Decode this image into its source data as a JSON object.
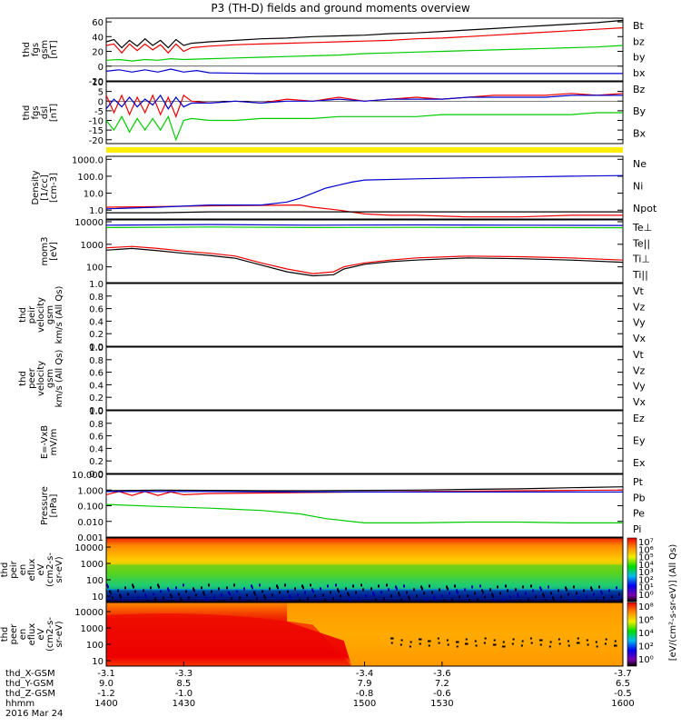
{
  "title": "P3 (TH-D) fields and ground moments overview",
  "colors": {
    "black": "#000000",
    "red": "#ee0000",
    "green": "#00cc00",
    "blue": "#0000cc"
  },
  "chart_data": [
    {
      "type": "line",
      "panel": "fgs-gsm",
      "ylabel_lines": [
        "thd",
        "fgs",
        "gsm",
        "[nT]"
      ],
      "ylim": [
        -20,
        65
      ],
      "ytick_labels": [
        "60",
        "40",
        "20",
        "0",
        "-20"
      ],
      "ytick_values": [
        60,
        40,
        20,
        0,
        -20
      ],
      "legend": [
        "Bt",
        "bz",
        "by",
        "bx"
      ],
      "series": [
        {
          "name": "Bt",
          "color": "black",
          "x": [
            1400,
            1403,
            1406,
            1409,
            1412,
            1415,
            1418,
            1421,
            1424,
            1427,
            1430,
            1433,
            1440,
            1450,
            1460,
            1470,
            1480,
            1490,
            1500,
            1510,
            1520,
            1530,
            1540,
            1550,
            1560,
            1570,
            1580,
            1590,
            1600
          ],
          "y": [
            33,
            36,
            25,
            35,
            27,
            37,
            28,
            35,
            25,
            36,
            28,
            31,
            33,
            35,
            37,
            38,
            40,
            41,
            42,
            44,
            45,
            47,
            49,
            51,
            53,
            55,
            57,
            59,
            62
          ]
        },
        {
          "name": "bz",
          "color": "red",
          "x": [
            1400,
            1403,
            1406,
            1409,
            1412,
            1415,
            1418,
            1421,
            1424,
            1427,
            1430,
            1433,
            1440,
            1450,
            1460,
            1470,
            1480,
            1490,
            1500,
            1510,
            1520,
            1530,
            1540,
            1550,
            1560,
            1570,
            1580,
            1590,
            1600
          ],
          "y": [
            28,
            30,
            18,
            30,
            21,
            30,
            22,
            29,
            18,
            30,
            20,
            25,
            27,
            29,
            30,
            31,
            32,
            33,
            34,
            35,
            37,
            38,
            40,
            42,
            44,
            46,
            48,
            50,
            52
          ]
        },
        {
          "name": "by",
          "color": "green",
          "x": [
            1400,
            1405,
            1410,
            1415,
            1420,
            1425,
            1430,
            1440,
            1450,
            1460,
            1470,
            1480,
            1490,
            1500,
            1510,
            1520,
            1530,
            1540,
            1550,
            1560,
            1570,
            1580,
            1590,
            1600
          ],
          "y": [
            8,
            9,
            7,
            9,
            8,
            10,
            9,
            10,
            11,
            12,
            13,
            14,
            15,
            17,
            18,
            19,
            20,
            21,
            22,
            23,
            24,
            25,
            26,
            28
          ]
        },
        {
          "name": "bx",
          "color": "blue",
          "x": [
            1400,
            1405,
            1410,
            1415,
            1420,
            1425,
            1430,
            1435,
            1440,
            1460,
            1480,
            1500,
            1520,
            1540,
            1560,
            1580,
            1600
          ],
          "y": [
            -7,
            -5,
            -8,
            -5,
            -8,
            -4,
            -8,
            -6,
            -9,
            -10,
            -10,
            -10,
            -10,
            -10,
            -10,
            -10,
            -10
          ]
        }
      ]
    },
    {
      "type": "line",
      "panel": "fgs-dsl",
      "ylabel_lines": [
        "thd",
        "fgs",
        "dsl",
        "[nT]"
      ],
      "ylim": [
        -22,
        10
      ],
      "ytick_labels": [
        "10",
        "5",
        "0",
        "-5",
        "-10",
        "-15",
        "-20"
      ],
      "ytick_values": [
        10,
        5,
        0,
        -5,
        -10,
        -15,
        -20
      ],
      "legend": [
        "Bz",
        "By",
        "Bx"
      ],
      "series": [
        {
          "name": "Bz",
          "color": "red",
          "x": [
            1400,
            1403,
            1406,
            1409,
            1412,
            1415,
            1418,
            1421,
            1424,
            1427,
            1430,
            1433,
            1440,
            1450,
            1460,
            1470,
            1480,
            1490,
            1500,
            1510,
            1520,
            1530,
            1540,
            1550,
            1560,
            1570,
            1580,
            1590,
            1600
          ],
          "y": [
            3,
            -6,
            3,
            -7,
            2,
            -6,
            3,
            -7,
            2,
            -8,
            3,
            0,
            -1,
            0,
            -1,
            1,
            0,
            2,
            0,
            1,
            2,
            1,
            2,
            3,
            3,
            3,
            4,
            3,
            4
          ]
        },
        {
          "name": "By",
          "color": "blue",
          "x": [
            1400,
            1403,
            1406,
            1409,
            1412,
            1415,
            1418,
            1421,
            1424,
            1427,
            1430,
            1433,
            1440,
            1450,
            1460,
            1470,
            1480,
            1490,
            1500,
            1510,
            1520,
            1530,
            1540,
            1550,
            1560,
            1570,
            1580,
            1590,
            1600
          ],
          "y": [
            -4,
            1,
            -3,
            2,
            -3,
            1,
            -2,
            3,
            -4,
            2,
            -3,
            -1,
            -1,
            0,
            -1,
            0,
            0,
            1,
            0,
            1,
            1,
            1,
            2,
            2,
            2,
            2,
            3,
            3,
            3
          ]
        },
        {
          "name": "Bx",
          "color": "green",
          "x": [
            1400,
            1403,
            1406,
            1409,
            1412,
            1415,
            1418,
            1421,
            1424,
            1427,
            1430,
            1433,
            1440,
            1450,
            1460,
            1470,
            1480,
            1490,
            1500,
            1510,
            1520,
            1530,
            1540,
            1550,
            1560,
            1570,
            1580,
            1590,
            1600
          ],
          "y": [
            -10,
            -15,
            -8,
            -16,
            -9,
            -15,
            -9,
            -15,
            -8,
            -20,
            -10,
            -9,
            -10,
            -10,
            -9,
            -9,
            -9,
            -8,
            -8,
            -8,
            -8,
            -7,
            -7,
            -7,
            -7,
            -7,
            -7,
            -6,
            -6
          ]
        }
      ]
    },
    {
      "type": "line",
      "panel": "density",
      "log": true,
      "ylabel_lines": [
        "Density",
        "[1/cc]",
        "[cm-3]"
      ],
      "ylim": [
        0.3,
        1500
      ],
      "ytick_labels": [
        "1000.0",
        "100.0",
        "10.0",
        "1.0"
      ],
      "ytick_values": [
        1000,
        100,
        10,
        1
      ],
      "legend": [
        "Ne",
        "Ni",
        "Npot"
      ],
      "series": [
        {
          "name": "Ne",
          "color": "red",
          "x": [
            1400,
            1420,
            1440,
            1460,
            1475,
            1480,
            1490,
            1500,
            1510,
            1520,
            1540,
            1560,
            1580,
            1600
          ],
          "y": [
            1.5,
            1.6,
            1.8,
            1.9,
            2,
            1.5,
            1,
            0.6,
            0.5,
            0.5,
            0.4,
            0.4,
            0.5,
            0.5
          ]
        },
        {
          "name": "Ni",
          "color": "black",
          "x": [
            1400,
            1420,
            1440,
            1460,
            1480,
            1500,
            1520,
            1540,
            1560,
            1580,
            1600
          ],
          "y": [
            0.7,
            0.7,
            0.8,
            0.8,
            0.8,
            0.8,
            0.8,
            0.8,
            0.8,
            0.8,
            0.8
          ]
        },
        {
          "name": "Npot",
          "color": "blue",
          "x": [
            1400,
            1420,
            1440,
            1460,
            1470,
            1475,
            1480,
            1485,
            1490,
            1495,
            1500,
            1520,
            1540,
            1560,
            1580,
            1600
          ],
          "y": [
            1.2,
            1.5,
            2,
            2,
            3,
            5,
            10,
            20,
            30,
            45,
            60,
            70,
            80,
            90,
            100,
            110
          ]
        }
      ]
    },
    {
      "type": "line",
      "panel": "temperature",
      "log": true,
      "ylabel_lines": [
        "mom3",
        "[eV]"
      ],
      "ylim": [
        20,
        12000
      ],
      "ytick_labels": [
        "10000",
        "1000",
        "100"
      ],
      "ytick_values": [
        10000,
        1000,
        100
      ],
      "legend": [
        "Te⊥",
        "Te||",
        "Ti⊥",
        "Ti||"
      ],
      "series": [
        {
          "name": "Te⊥",
          "color": "red",
          "x": [
            1400,
            1410,
            1420,
            1430,
            1440,
            1450,
            1460,
            1470,
            1480,
            1488,
            1492,
            1500,
            1510,
            1520,
            1540,
            1560,
            1580,
            1600
          ],
          "y": [
            700,
            800,
            650,
            500,
            400,
            300,
            150,
            80,
            50,
            60,
            100,
            150,
            200,
            250,
            300,
            280,
            250,
            200
          ]
        },
        {
          "name": "Te||",
          "color": "black",
          "x": [
            1400,
            1410,
            1420,
            1430,
            1440,
            1450,
            1460,
            1470,
            1480,
            1488,
            1492,
            1500,
            1510,
            1520,
            1540,
            1560,
            1580,
            1600
          ],
          "y": [
            550,
            650,
            520,
            400,
            320,
            240,
            120,
            60,
            40,
            45,
            80,
            130,
            170,
            200,
            250,
            230,
            200,
            160
          ]
        },
        {
          "name": "Ti⊥",
          "color": "blue",
          "x": [
            1400,
            1440,
            1480,
            1520,
            1560,
            1600
          ],
          "y": [
            7000,
            7500,
            7000,
            7200,
            7000,
            6800
          ]
        },
        {
          "name": "Ti||",
          "color": "green",
          "x": [
            1400,
            1440,
            1480,
            1520,
            1560,
            1600
          ],
          "y": [
            5500,
            5800,
            5500,
            5600,
            5500,
            5400
          ]
        }
      ]
    },
    {
      "type": "line",
      "panel": "peir-velocity",
      "ylabel_lines": [
        "thd",
        "peir",
        "velocity",
        "gsm",
        "km/s (All Qs)"
      ],
      "ylim": [
        0,
        1
      ],
      "ytick_labels": [
        "1.0",
        "0.8",
        "0.6",
        "0.4",
        "0.2",
        "0.0"
      ],
      "ytick_values": [
        1,
        0.8,
        0.6,
        0.4,
        0.2,
        0
      ],
      "legend": [
        "Vt",
        "Vz",
        "Vy",
        "Vx"
      ],
      "series": []
    },
    {
      "type": "line",
      "panel": "peer-velocity",
      "ylabel_lines": [
        "thd",
        "peer",
        "velocity",
        "gsm",
        "km/s (All Qs)"
      ],
      "ylim": [
        0,
        1
      ],
      "ytick_labels": [
        "1.0",
        "0.8",
        "0.6",
        "0.4",
        "0.2",
        "0.0"
      ],
      "ytick_values": [
        1,
        0.8,
        0.6,
        0.4,
        0.2,
        0
      ],
      "legend": [
        "Vt",
        "Vz",
        "Vy",
        "Vx"
      ],
      "series": []
    },
    {
      "type": "line",
      "panel": "efield",
      "ylabel_lines": [
        "E=-VxB",
        "mV/m"
      ],
      "ylim": [
        0,
        1
      ],
      "ytick_labels": [
        "1.0",
        "0.8",
        "0.6",
        "0.4",
        "0.2",
        "0.0"
      ],
      "ytick_values": [
        1,
        0.8,
        0.6,
        0.4,
        0.2,
        0
      ],
      "legend": [
        "Ez",
        "Ey",
        "Ex"
      ],
      "series": []
    },
    {
      "type": "line",
      "panel": "pressure",
      "log": true,
      "ylabel_lines": [
        "Pressure",
        "[nPa]"
      ],
      "ylim": [
        0.001,
        10
      ],
      "ytick_labels": [
        "10.000",
        "1.000",
        "0.100",
        "0.010",
        "0.001"
      ],
      "ytick_values": [
        10,
        1,
        0.1,
        0.01,
        0.001
      ],
      "legend": [
        "Pt",
        "Pb",
        "Pe",
        "Pi"
      ],
      "series": [
        {
          "name": "Pt",
          "color": "black",
          "x": [
            1400,
            1420,
            1440,
            1460,
            1480,
            1500,
            1520,
            1540,
            1560,
            1580,
            1600
          ],
          "y": [
            0.9,
            1.0,
            0.95,
            0.9,
            0.9,
            0.95,
            1.0,
            1.1,
            1.2,
            1.4,
            1.6
          ]
        },
        {
          "name": "Pb",
          "color": "red",
          "x": [
            1400,
            1405,
            1410,
            1415,
            1420,
            1425,
            1430,
            1440,
            1460,
            1480,
            1500,
            1520,
            1540,
            1560,
            1580,
            1600
          ],
          "y": [
            0.5,
            0.8,
            0.45,
            0.8,
            0.45,
            0.75,
            0.5,
            0.6,
            0.65,
            0.7,
            0.75,
            0.8,
            0.85,
            0.9,
            0.95,
            1.0
          ]
        },
        {
          "name": "Pe",
          "color": "green",
          "x": [
            1400,
            1420,
            1440,
            1460,
            1475,
            1485,
            1500,
            1520,
            1540,
            1560,
            1580,
            1600
          ],
          "y": [
            0.12,
            0.09,
            0.07,
            0.05,
            0.03,
            0.015,
            0.008,
            0.008,
            0.009,
            0.009,
            0.008,
            0.008
          ]
        },
        {
          "name": "Pi",
          "color": "blue",
          "x": [
            1400,
            1440,
            1480,
            1520,
            1560,
            1600
          ],
          "y": [
            0.8,
            0.8,
            0.75,
            0.75,
            0.75,
            0.75
          ]
        }
      ]
    },
    {
      "type": "heatmap",
      "panel": "peir-eflux",
      "ylabel_lines": [
        "thd",
        "peir",
        "en",
        "eflux",
        "eV",
        "(cm2-s-",
        "sr-eV)"
      ],
      "ytick_labels": [
        "10000",
        "1000",
        "100",
        "10"
      ],
      "cbar_labels": [
        "10⁷",
        "10⁶",
        "10⁵",
        "10⁴",
        "10³",
        "10²",
        "10¹",
        "10⁰"
      ]
    },
    {
      "type": "heatmap",
      "panel": "peer-eflux",
      "ylabel_lines": [
        "thd",
        "peer",
        "en",
        "eflux",
        "eV",
        "(cm2-s-",
        "sr-eV)"
      ],
      "ytick_labels": [
        "10000",
        "1000",
        "100",
        "10"
      ],
      "cbar_labels": [
        "10⁸",
        "10⁶",
        "10⁴",
        "10²",
        "10⁰"
      ]
    }
  ],
  "colorbar_title": "[eV/(cm²-s-sr-eV)] (All Qs)",
  "x_axis": {
    "xlim": [
      1400,
      1600
    ],
    "tick_values": [
      1400,
      1430,
      1500,
      1530,
      1600
    ],
    "rows": [
      {
        "label": "thd_X-GSM",
        "values": [
          "-3.1",
          "-3.3",
          "-3.4",
          "-3.6",
          "-3.7"
        ]
      },
      {
        "label": "thd_Y-GSM",
        "values": [
          "9.0",
          "8.5",
          "7.9",
          "7.2",
          "6.5"
        ]
      },
      {
        "label": "thd_Z-GSM",
        "values": [
          "-1.2",
          "-1.0",
          "-0.8",
          "-0.6",
          "-0.5"
        ]
      },
      {
        "label": "hhmm",
        "values": [
          "1400",
          "1430",
          "1500",
          "1530",
          "1600"
        ]
      }
    ],
    "date": "2016 Mar 24"
  }
}
